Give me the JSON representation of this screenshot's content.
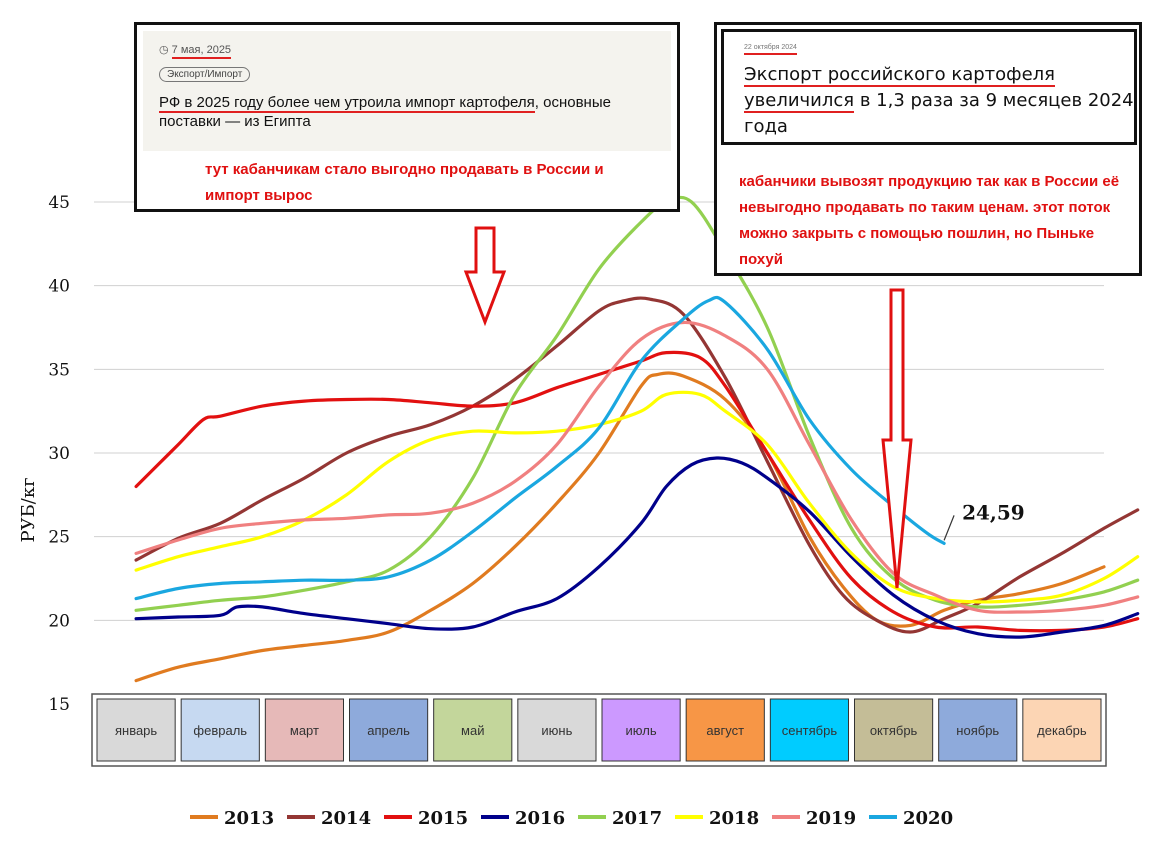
{
  "chart_data": {
    "type": "line",
    "ylabel": "РУБ/кг",
    "ylim": [
      15,
      45
    ],
    "yticks": [
      15,
      20,
      25,
      30,
      35,
      40,
      45
    ],
    "grid": true,
    "legend_placement": "bottom",
    "months": [
      {
        "label": "январь",
        "color": "#d9d9d9"
      },
      {
        "label": "февраль",
        "color": "#c6d9f1"
      },
      {
        "label": "март",
        "color": "#e6b9b8"
      },
      {
        "label": "апрель",
        "color": "#8eaadb"
      },
      {
        "label": "май",
        "color": "#c3d69b"
      },
      {
        "label": "июнь",
        "color": "#d9d9d9"
      },
      {
        "label": "июль",
        "color": "#cc99ff"
      },
      {
        "label": "август",
        "color": "#f79646"
      },
      {
        "label": "сентябрь",
        "color": "#00ccff"
      },
      {
        "label": "октябрь",
        "color": "#c4bd97"
      },
      {
        "label": "ноябрь",
        "color": "#8eaadb"
      },
      {
        "label": "декабрь",
        "color": "#fcd5b4"
      }
    ],
    "series": [
      {
        "name": "2013",
        "color": "#e07b20",
        "points": [
          [
            0,
            16.4
          ],
          [
            0.5,
            17.2
          ],
          [
            1,
            17.7
          ],
          [
            1.5,
            18.2
          ],
          [
            2,
            18.5
          ],
          [
            2.5,
            18.8
          ],
          [
            3,
            19.3
          ],
          [
            3.5,
            20.6
          ],
          [
            4,
            22.2
          ],
          [
            4.5,
            24.4
          ],
          [
            5,
            27.0
          ],
          [
            5.5,
            30.0
          ],
          [
            6,
            34.0
          ],
          [
            6.2,
            34.7
          ],
          [
            6.5,
            34.6
          ],
          [
            7,
            33.2
          ],
          [
            7.5,
            30.0
          ],
          [
            8,
            25.0
          ],
          [
            8.4,
            22.0
          ],
          [
            8.8,
            20.0
          ],
          [
            9.2,
            19.7
          ],
          [
            9.6,
            20.6
          ],
          [
            10,
            21.2
          ],
          [
            10.5,
            21.6
          ],
          [
            11,
            22.2
          ],
          [
            11.5,
            23.2
          ]
        ]
      },
      {
        "name": "2014",
        "color": "#943634",
        "points": [
          [
            0,
            23.6
          ],
          [
            0.5,
            24.9
          ],
          [
            1,
            25.8
          ],
          [
            1.5,
            27.2
          ],
          [
            2,
            28.5
          ],
          [
            2.5,
            30.0
          ],
          [
            3,
            31.0
          ],
          [
            3.5,
            31.7
          ],
          [
            4,
            32.8
          ],
          [
            4.5,
            34.4
          ],
          [
            5,
            36.4
          ],
          [
            5.5,
            38.5
          ],
          [
            5.8,
            39.1
          ],
          [
            6.1,
            39.2
          ],
          [
            6.5,
            38.3
          ],
          [
            7,
            34.5
          ],
          [
            7.5,
            29.5
          ],
          [
            8,
            24.5
          ],
          [
            8.4,
            21.5
          ],
          [
            8.8,
            20.0
          ],
          [
            9.2,
            19.3
          ],
          [
            9.6,
            20.1
          ],
          [
            10,
            21.0
          ],
          [
            10.5,
            22.6
          ],
          [
            11,
            24.0
          ],
          [
            11.5,
            25.5
          ],
          [
            11.9,
            26.6
          ]
        ]
      },
      {
        "name": "2015",
        "color": "#e21010",
        "points": [
          [
            0,
            28.0
          ],
          [
            0.2,
            29.0
          ],
          [
            0.5,
            30.5
          ],
          [
            0.8,
            32.0
          ],
          [
            1,
            32.2
          ],
          [
            1.5,
            32.8
          ],
          [
            2,
            33.1
          ],
          [
            2.5,
            33.2
          ],
          [
            3,
            33.2
          ],
          [
            3.5,
            33.0
          ],
          [
            4,
            32.8
          ],
          [
            4.5,
            33.0
          ],
          [
            5,
            33.9
          ],
          [
            5.5,
            34.7
          ],
          [
            6,
            35.5
          ],
          [
            6.3,
            36.0
          ],
          [
            6.7,
            35.7
          ],
          [
            7,
            34.0
          ],
          [
            7.5,
            30.0
          ],
          [
            8,
            26.0
          ],
          [
            8.5,
            22.5
          ],
          [
            9,
            20.5
          ],
          [
            9.5,
            19.6
          ],
          [
            10,
            19.6
          ],
          [
            10.5,
            19.4
          ],
          [
            11,
            19.4
          ],
          [
            11.5,
            19.6
          ],
          [
            11.9,
            20.1
          ]
        ]
      },
      {
        "name": "2016",
        "color": "#00008b",
        "points": [
          [
            0,
            20.1
          ],
          [
            0.5,
            20.2
          ],
          [
            1,
            20.3
          ],
          [
            1.2,
            20.8
          ],
          [
            1.5,
            20.8
          ],
          [
            2,
            20.4
          ],
          [
            2.5,
            20.1
          ],
          [
            3,
            19.8
          ],
          [
            3.5,
            19.5
          ],
          [
            4,
            19.6
          ],
          [
            4.5,
            20.5
          ],
          [
            5,
            21.3
          ],
          [
            5.5,
            23.2
          ],
          [
            6,
            25.8
          ],
          [
            6.3,
            28.0
          ],
          [
            6.6,
            29.3
          ],
          [
            6.9,
            29.7
          ],
          [
            7.2,
            29.4
          ],
          [
            7.5,
            28.5
          ],
          [
            8,
            26.5
          ],
          [
            8.5,
            23.8
          ],
          [
            9,
            21.5
          ],
          [
            9.5,
            20.0
          ],
          [
            10,
            19.2
          ],
          [
            10.5,
            19.0
          ],
          [
            11,
            19.3
          ],
          [
            11.5,
            19.7
          ],
          [
            11.9,
            20.4
          ]
        ]
      },
      {
        "name": "2017",
        "color": "#92d050",
        "points": [
          [
            0,
            20.6
          ],
          [
            0.5,
            20.9
          ],
          [
            1,
            21.2
          ],
          [
            1.5,
            21.4
          ],
          [
            2,
            21.8
          ],
          [
            2.5,
            22.3
          ],
          [
            3,
            23.0
          ],
          [
            3.5,
            25.0
          ],
          [
            4,
            28.5
          ],
          [
            4.5,
            33.5
          ],
          [
            5,
            37.0
          ],
          [
            5.5,
            41.0
          ],
          [
            6,
            43.8
          ],
          [
            6.3,
            45.0
          ],
          [
            6.6,
            45.0
          ],
          [
            7,
            42.0
          ],
          [
            7.5,
            37.5
          ],
          [
            8,
            31.0
          ],
          [
            8.5,
            25.5
          ],
          [
            9,
            22.5
          ],
          [
            9.5,
            21.2
          ],
          [
            10,
            20.8
          ],
          [
            10.5,
            20.9
          ],
          [
            11,
            21.2
          ],
          [
            11.5,
            21.7
          ],
          [
            11.9,
            22.4
          ]
        ]
      },
      {
        "name": "2018",
        "color": "#ffff00",
        "points": [
          [
            0,
            23.0
          ],
          [
            0.5,
            23.8
          ],
          [
            1,
            24.4
          ],
          [
            1.5,
            25.0
          ],
          [
            2,
            26.0
          ],
          [
            2.5,
            27.5
          ],
          [
            3,
            29.5
          ],
          [
            3.5,
            30.8
          ],
          [
            4,
            31.3
          ],
          [
            4.5,
            31.2
          ],
          [
            5,
            31.3
          ],
          [
            5.5,
            31.7
          ],
          [
            6,
            32.5
          ],
          [
            6.3,
            33.5
          ],
          [
            6.7,
            33.5
          ],
          [
            7,
            32.5
          ],
          [
            7.5,
            30.5
          ],
          [
            8,
            27.0
          ],
          [
            8.5,
            24.0
          ],
          [
            9,
            22.0
          ],
          [
            9.5,
            21.3
          ],
          [
            10,
            21.1
          ],
          [
            10.5,
            21.2
          ],
          [
            11,
            21.5
          ],
          [
            11.5,
            22.5
          ],
          [
            11.9,
            23.8
          ]
        ]
      },
      {
        "name": "2019",
        "color": "#f08080",
        "points": [
          [
            0,
            24.0
          ],
          [
            0.5,
            24.8
          ],
          [
            1,
            25.5
          ],
          [
            1.5,
            25.8
          ],
          [
            2,
            26.0
          ],
          [
            2.5,
            26.1
          ],
          [
            3,
            26.3
          ],
          [
            3.5,
            26.4
          ],
          [
            4,
            27.0
          ],
          [
            4.5,
            28.3
          ],
          [
            5,
            30.5
          ],
          [
            5.5,
            34.0
          ],
          [
            6,
            36.8
          ],
          [
            6.5,
            37.8
          ],
          [
            7,
            37.0
          ],
          [
            7.5,
            35.0
          ],
          [
            8,
            30.5
          ],
          [
            8.5,
            26.0
          ],
          [
            9,
            22.8
          ],
          [
            9.5,
            21.5
          ],
          [
            10,
            20.6
          ],
          [
            10.5,
            20.5
          ],
          [
            11,
            20.6
          ],
          [
            11.5,
            20.9
          ],
          [
            11.9,
            21.4
          ]
        ]
      },
      {
        "name": "2020",
        "color": "#1aa7e0",
        "points": [
          [
            0,
            21.3
          ],
          [
            0.5,
            21.9
          ],
          [
            1,
            22.2
          ],
          [
            1.5,
            22.3
          ],
          [
            2,
            22.4
          ],
          [
            2.5,
            22.4
          ],
          [
            3,
            22.6
          ],
          [
            3.5,
            23.6
          ],
          [
            4,
            25.3
          ],
          [
            4.5,
            27.3
          ],
          [
            5,
            29.2
          ],
          [
            5.5,
            31.5
          ],
          [
            6,
            35.5
          ],
          [
            6.5,
            38.0
          ],
          [
            6.8,
            39.1
          ],
          [
            7,
            39.0
          ],
          [
            7.5,
            36.2
          ],
          [
            8,
            32.0
          ],
          [
            8.5,
            29.0
          ],
          [
            9,
            26.8
          ],
          [
            9.4,
            25.2
          ],
          [
            9.6,
            24.6
          ]
        ]
      }
    ],
    "annotation": {
      "text": "24,59"
    }
  },
  "boxes": {
    "left": {
      "date": "7 мая, 2025",
      "tag": "Экспорт/Импорт",
      "headline_part1": "РФ в 2025 году более чем утроила импорт картофеля",
      "headline_part2": ", основные поставки — из Египта",
      "comment": "тут кабанчикам стало выгодно продавать в России и импорт вырос"
    },
    "right": {
      "date": "22 октября 2024",
      "headline_part1": "Экспорт российского картофеля",
      "headline_part2": "увеличился",
      "headline_part3": " в 1,3 раза за 9 месяцев 2024 года",
      "comment": "кабанчики вывозят продукцию так как в России её невыгодно продавать по таким ценам. этот поток можно закрыть с помощью пошлин, но Пыньке похуй"
    }
  }
}
